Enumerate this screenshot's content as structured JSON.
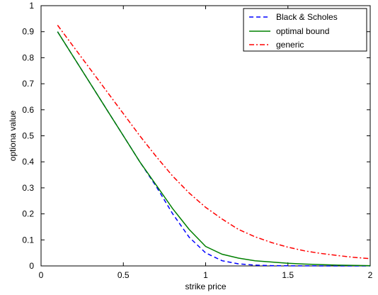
{
  "chart_data": {
    "type": "line",
    "xlabel": "strike price",
    "ylabel": "optiona value",
    "xlim": [
      0,
      2
    ],
    "ylim": [
      0,
      1
    ],
    "xticks": [
      "0",
      "0.5",
      "1",
      "1.5",
      "2"
    ],
    "yticks": [
      "0",
      "0.1",
      "0.2",
      "0.3",
      "0.4",
      "0.5",
      "0.6",
      "0.7",
      "0.8",
      "0.9",
      "1"
    ],
    "grid": false,
    "legend_position": "top-right",
    "series": [
      {
        "name": "Black & Scholes",
        "color": "#0000ff",
        "style": "dashed",
        "x": [
          0.1,
          0.2,
          0.3,
          0.4,
          0.5,
          0.6,
          0.7,
          0.8,
          0.9,
          1.0,
          1.1,
          1.2,
          1.3,
          1.4,
          1.5,
          1.6,
          1.8,
          2.0
        ],
        "y": [
          0.9,
          0.8,
          0.7,
          0.6,
          0.5,
          0.4,
          0.305,
          0.2,
          0.11,
          0.05,
          0.02,
          0.008,
          0.003,
          0.001,
          0.0005,
          0.0002,
          0.0,
          0.0
        ]
      },
      {
        "name": "optimal bound",
        "color": "#008000",
        "style": "solid",
        "x": [
          0.1,
          0.2,
          0.3,
          0.4,
          0.5,
          0.6,
          0.7,
          0.8,
          0.9,
          1.0,
          1.1,
          1.2,
          1.3,
          1.4,
          1.5,
          1.6,
          1.8,
          2.0
        ],
        "y": [
          0.9,
          0.8,
          0.7,
          0.6,
          0.5,
          0.4,
          0.31,
          0.22,
          0.14,
          0.075,
          0.045,
          0.03,
          0.02,
          0.015,
          0.01,
          0.007,
          0.003,
          0.001
        ]
      },
      {
        "name": "generic",
        "color": "#ff0000",
        "style": "dashdot",
        "x": [
          0.1,
          0.2,
          0.3,
          0.4,
          0.5,
          0.6,
          0.7,
          0.8,
          0.9,
          1.0,
          1.1,
          1.2,
          1.3,
          1.4,
          1.5,
          1.6,
          1.7,
          1.8,
          1.9,
          2.0
        ],
        "y": [
          0.925,
          0.84,
          0.755,
          0.67,
          0.585,
          0.5,
          0.42,
          0.345,
          0.28,
          0.225,
          0.18,
          0.14,
          0.112,
          0.09,
          0.072,
          0.058,
          0.048,
          0.04,
          0.033,
          0.028
        ]
      }
    ]
  }
}
